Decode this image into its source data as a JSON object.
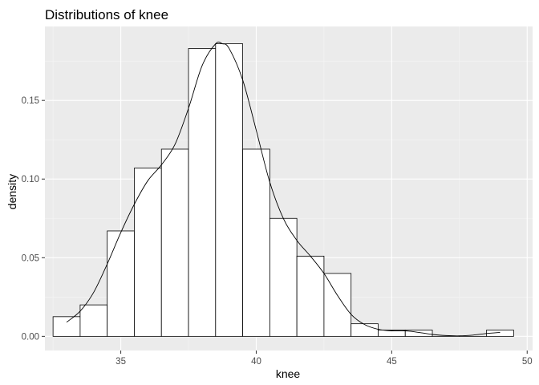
{
  "chart_data": {
    "type": "histogram",
    "title": "Distributions of knee",
    "xlabel": "knee",
    "ylabel": "density",
    "xlim": [
      32.2,
      50.2
    ],
    "ylim": [
      -0.009,
      0.197
    ],
    "x_ticks": [
      35,
      40,
      45,
      50
    ],
    "x_tick_labels": [
      "35",
      "40",
      "45",
      "50"
    ],
    "y_ticks": [
      0.0,
      0.05,
      0.1,
      0.15
    ],
    "y_tick_labels": [
      "0.00",
      "0.05",
      "0.10",
      "0.15"
    ],
    "grid": true,
    "bins": [
      {
        "x0": 32.5,
        "x1": 33.5,
        "density": 0.0125
      },
      {
        "x0": 33.5,
        "x1": 34.5,
        "density": 0.02
      },
      {
        "x0": 34.5,
        "x1": 35.5,
        "density": 0.067
      },
      {
        "x0": 35.5,
        "x1": 36.5,
        "density": 0.107
      },
      {
        "x0": 36.5,
        "x1": 37.5,
        "density": 0.119
      },
      {
        "x0": 37.5,
        "x1": 38.5,
        "density": 0.183
      },
      {
        "x0": 38.5,
        "x1": 39.5,
        "density": 0.186
      },
      {
        "x0": 39.5,
        "x1": 40.5,
        "density": 0.119
      },
      {
        "x0": 40.5,
        "x1": 41.5,
        "density": 0.075
      },
      {
        "x0": 41.5,
        "x1": 42.5,
        "density": 0.051
      },
      {
        "x0": 42.5,
        "x1": 43.5,
        "density": 0.04
      },
      {
        "x0": 43.5,
        "x1": 44.5,
        "density": 0.008
      },
      {
        "x0": 44.5,
        "x1": 45.5,
        "density": 0.004
      },
      {
        "x0": 45.5,
        "x1": 46.5,
        "density": 0.004
      },
      {
        "x0": 46.5,
        "x1": 47.5,
        "density": 0.0
      },
      {
        "x0": 47.5,
        "x1": 48.5,
        "density": 0.0
      },
      {
        "x0": 48.5,
        "x1": 49.5,
        "density": 0.004
      }
    ],
    "density_curve": {
      "x": [
        33.0,
        33.5,
        34.0,
        34.5,
        35.0,
        35.5,
        36.0,
        36.5,
        37.0,
        37.5,
        38.0,
        38.5,
        38.75,
        39.0,
        39.5,
        40.0,
        40.5,
        41.0,
        41.5,
        42.0,
        42.5,
        43.0,
        43.5,
        44.0,
        44.5,
        45.0,
        45.5,
        46.0,
        46.5,
        47.0,
        47.5,
        48.0,
        48.5,
        49.0
      ],
      "y": [
        0.009,
        0.016,
        0.028,
        0.046,
        0.066,
        0.084,
        0.099,
        0.109,
        0.122,
        0.145,
        0.172,
        0.186,
        0.186,
        0.183,
        0.163,
        0.131,
        0.098,
        0.075,
        0.061,
        0.051,
        0.04,
        0.026,
        0.014,
        0.0075,
        0.0045,
        0.0035,
        0.0035,
        0.0025,
        0.0012,
        0.0005,
        0.0003,
        0.0008,
        0.0018,
        0.0025
      ]
    },
    "colors": {
      "panel_background": "#ebebeb",
      "grid_major": "#ffffff",
      "grid_minor": "#f5f5f5",
      "bar_fill": "#ffffff",
      "bar_stroke": "#000000",
      "curve": "#000000",
      "tick": "#333333"
    }
  }
}
